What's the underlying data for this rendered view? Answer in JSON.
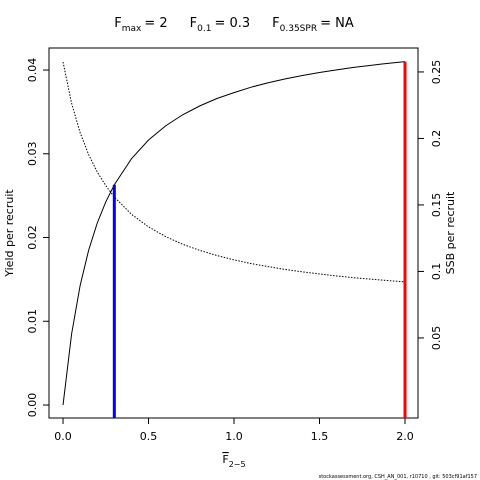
{
  "chart_data": {
    "type": "line",
    "title_parts": [
      {
        "symbol": "F",
        "subscript": "max",
        "value": "= 2"
      },
      {
        "symbol": "F",
        "subscript": "0.1",
        "value": "= 0.3"
      },
      {
        "symbol": "F",
        "subscript": "0.35SPR",
        "value": "= NA"
      }
    ],
    "xlabel": "F",
    "xlabel_subscript": "2−5",
    "ylabel": "Yield per recruit",
    "y2label": "SSB per recruit",
    "footer": "stockassessment.org, CSH_AN_001, r10710 , git: 503cf91af157",
    "x": [
      0,
      0.05,
      0.1,
      0.15,
      0.2,
      0.25,
      0.3,
      0.4,
      0.5,
      0.6,
      0.7,
      0.8,
      0.9,
      1.0,
      1.1,
      1.2,
      1.3,
      1.4,
      1.5,
      1.6,
      1.7,
      1.8,
      1.9,
      2.0
    ],
    "series": [
      {
        "color": "#000000",
        "line_style": "solid",
        "axis": "y",
        "values": [
          0,
          0.00846,
          0.01426,
          0.0185,
          0.02172,
          0.02425,
          0.0263,
          0.0294,
          0.03164,
          0.03333,
          0.03466,
          0.03572,
          0.0366,
          0.0373,
          0.03795,
          0.03848,
          0.03894,
          0.03935,
          0.0397,
          0.04002,
          0.04031,
          0.04056,
          0.0408,
          0.041
        ]
      },
      {
        "color": "#000000",
        "line_style": "dotted",
        "axis": "y2",
        "values": [
          0.2575,
          0.2265,
          0.2044,
          0.1878,
          0.1748,
          0.1645,
          0.156,
          0.143,
          0.1335,
          0.1262,
          0.1204,
          0.1158,
          0.112,
          0.1087,
          0.1059,
          0.1036,
          0.1015,
          0.0997,
          0.0981,
          0.0966,
          0.0953,
          0.0942,
          0.0931,
          0.0922
        ]
      }
    ],
    "vlines": [
      {
        "x": 0.3,
        "y": 0.0263,
        "color": "#0000ff"
      },
      {
        "x": 2.0,
        "y": 0.041,
        "color": "#ff0000"
      }
    ],
    "xlim": [
      -0.082,
      2.076
    ],
    "ylim": [
      -0.00155,
      0.04263
    ],
    "y2lim": [
      -0.0102,
      0.268
    ],
    "xticks": [
      {
        "value": 0,
        "label": "0.0"
      },
      0.5,
      {
        "value": 1,
        "label": "1.0"
      },
      1.5,
      {
        "value": 2,
        "label": "2.0"
      }
    ],
    "yticks": [
      {
        "value": 0,
        "label": "0.00"
      },
      0.01,
      0.02,
      0.03,
      0.04
    ],
    "y2ticks": [
      0.05,
      0.1,
      0.15,
      0.2,
      0.25
    ]
  }
}
